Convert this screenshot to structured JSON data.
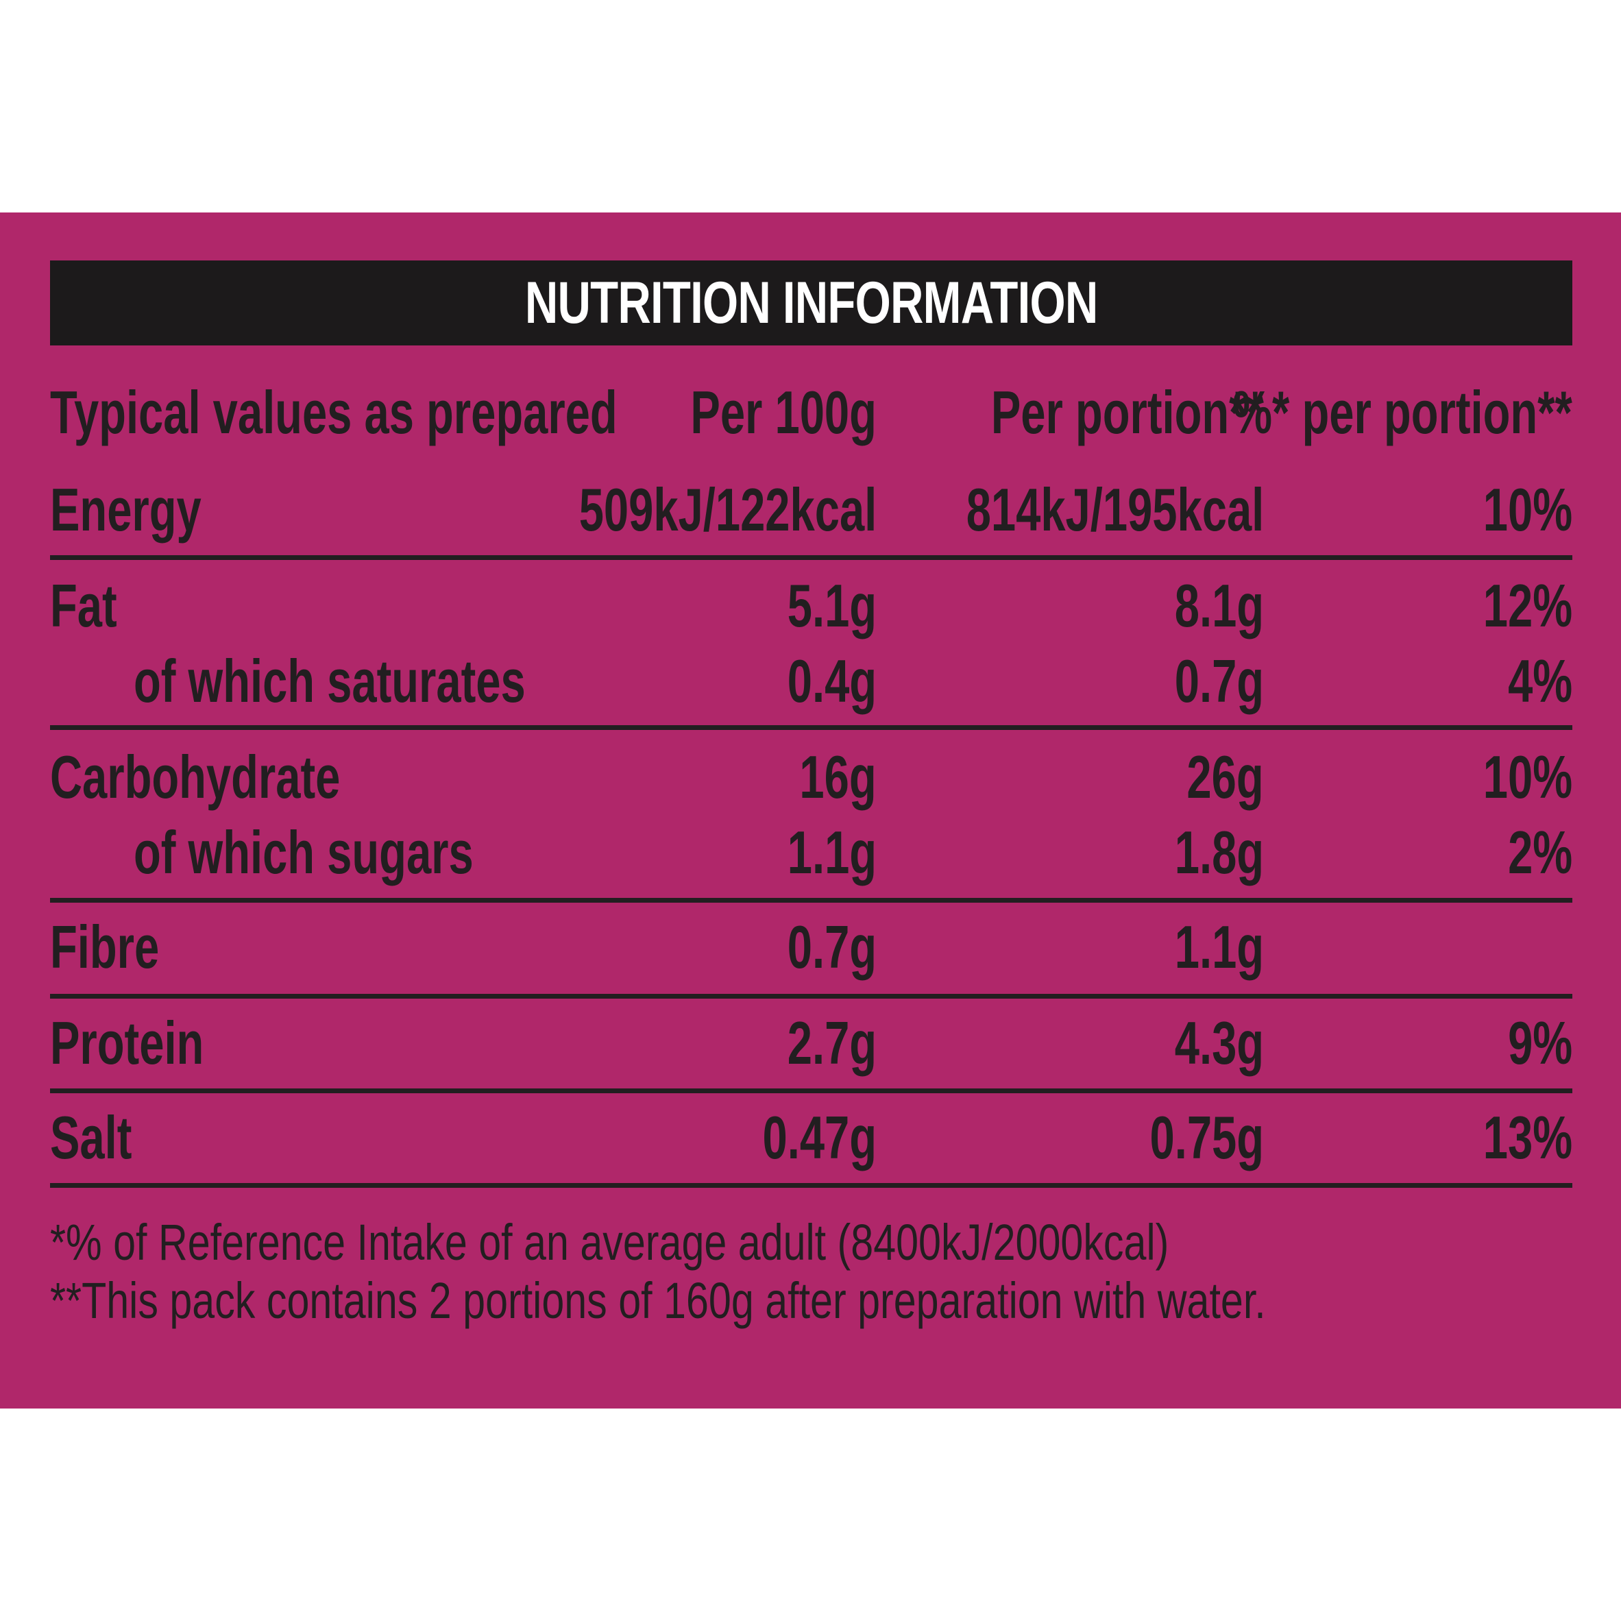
{
  "title": "NUTRITION INFORMATION",
  "header": {
    "label": "Typical values as prepared",
    "per100g": "Per 100g",
    "per_portion": "Per portion**",
    "pct_per_portion": "%* per portion**"
  },
  "rows": [
    {
      "label": "Energy",
      "per100g": "509kJ/122kcal",
      "per_portion": "814kJ/195kcal",
      "pct": "10%"
    },
    {
      "label": "Fat",
      "per100g": "5.1g",
      "per_portion": "8.1g",
      "pct": "12%"
    },
    {
      "label": "of which saturates",
      "per100g": "0.4g",
      "per_portion": "0.7g",
      "pct": "4%"
    },
    {
      "label": "Carbohydrate",
      "per100g": "16g",
      "per_portion": "26g",
      "pct": "10%"
    },
    {
      "label": "of which sugars",
      "per100g": "1.1g",
      "per_portion": "1.8g",
      "pct": "2%"
    },
    {
      "label": "Fibre",
      "per100g": "0.7g",
      "per_portion": "1.1g",
      "pct": ""
    },
    {
      "label": "Protein",
      "per100g": "2.7g",
      "per_portion": "4.3g",
      "pct": "9%"
    },
    {
      "label": "Salt",
      "per100g": "0.47g",
      "per_portion": "0.75g",
      "pct": "13%"
    }
  ],
  "footnotes": [
    "*% of Reference Intake of an average adult (8400kJ/2000kcal)",
    "**This pack contains 2 portions of 160g after preparation with water."
  ],
  "colors": {
    "panel": "#b0276a",
    "text": "#221e20",
    "title_bar": "#1c1a1b",
    "title_text": "#ffffff"
  }
}
